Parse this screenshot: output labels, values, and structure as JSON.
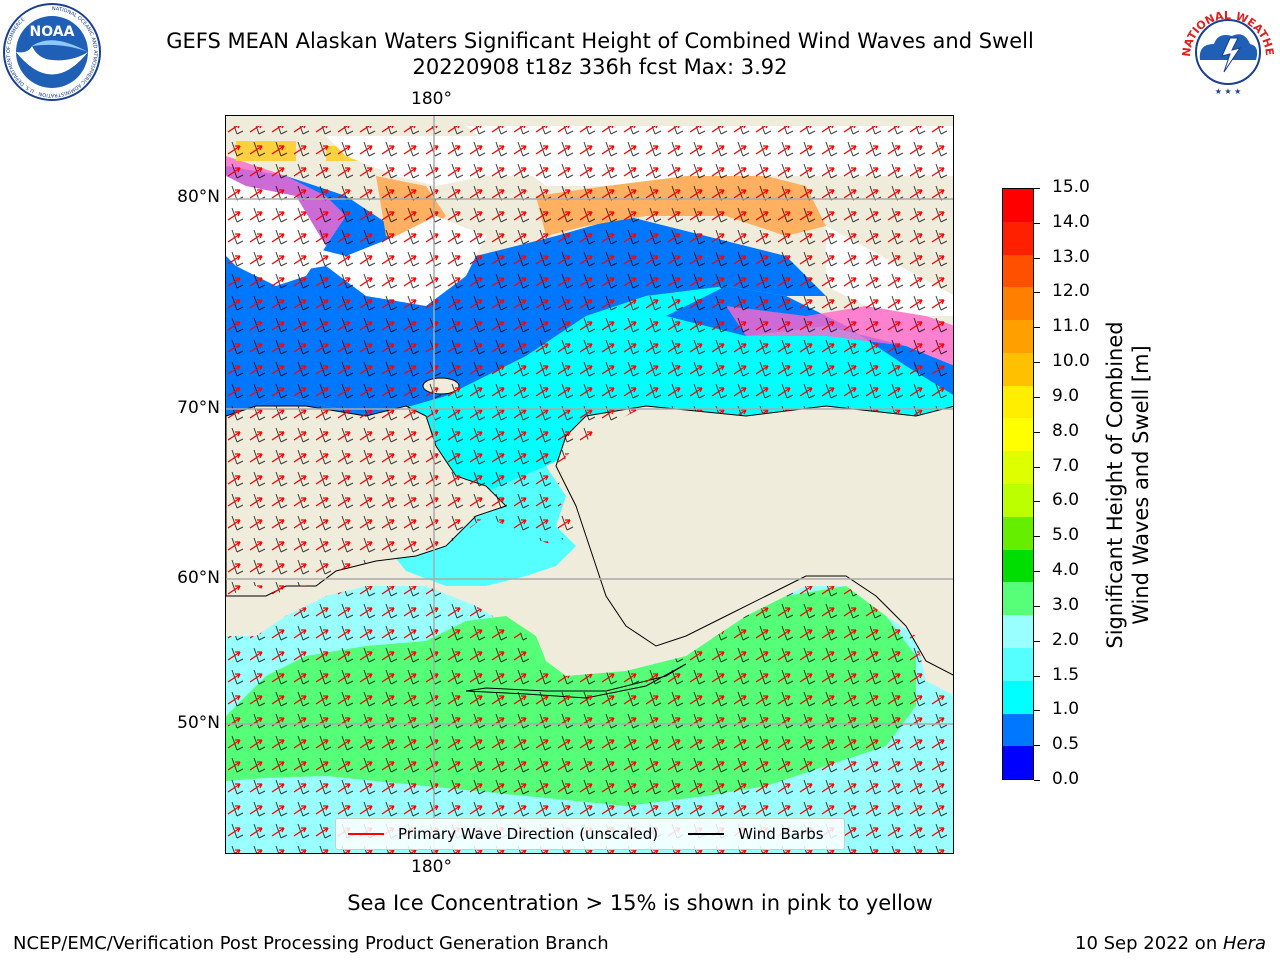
{
  "title": {
    "line1": "GEFS MEAN Alaskan Waters Significant Height of Combined Wind Waves and Swell",
    "line2": "20220908 t18z 336h fcst   Max: 3.92"
  },
  "logos": {
    "left": {
      "name": "noaa-logo",
      "text": "NOAA",
      "ring_text": "NATIONAL OCEANIC AND ATMOSPHERIC ADMINISTRATION · U.S. DEPARTMENT OF COMMERCE"
    },
    "right": {
      "name": "nws-logo",
      "ring_text": "NATIONAL WEATHER SERVICE"
    }
  },
  "map": {
    "lon_labels": {
      "top": "180°",
      "bottom": "180°"
    },
    "lat_labels": [
      "80°N",
      "70°N",
      "60°N",
      "50°N"
    ],
    "colors": {
      "land": "#efecdc",
      "ice_white": "#ffffff",
      "grid": "#aaaaaa"
    }
  },
  "colorbar": {
    "ticks": [
      "15.0",
      "14.0",
      "13.0",
      "12.0",
      "11.0",
      "10.0",
      "9.0",
      "8.0",
      "7.0",
      "6.0",
      "5.0",
      "4.0",
      "3.0",
      "2.0",
      "1.5",
      "1.0",
      "0.5",
      "0.0"
    ],
    "colors_top_to_bottom": [
      "#ff0000",
      "#ff2000",
      "#ff5000",
      "#ff8000",
      "#ffa000",
      "#ffc000",
      "#ffee00",
      "#ffff00",
      "#ddff00",
      "#bbff00",
      "#66ee00",
      "#00dd00",
      "#55ff77",
      "#99ffff",
      "#55ffff",
      "#00ffff",
      "#0077ff",
      "#0000ff"
    ],
    "title_line1": "Significant Height of Combined",
    "title_line2": "Wind Waves and Swell [m]"
  },
  "legend": {
    "items": [
      {
        "label": "Primary Wave Direction (unscaled)",
        "color": "#ff0000"
      },
      {
        "label": "Wind Barbs",
        "color": "#000000"
      }
    ]
  },
  "footnote": "Sea Ice Concentration > 15% is shown in pink to yellow",
  "footer": {
    "left": "NCEP/EMC/Verification Post Processing Product Generation Branch",
    "right_prefix": "10 Sep 2022 on ",
    "right_italic": "Hera"
  }
}
